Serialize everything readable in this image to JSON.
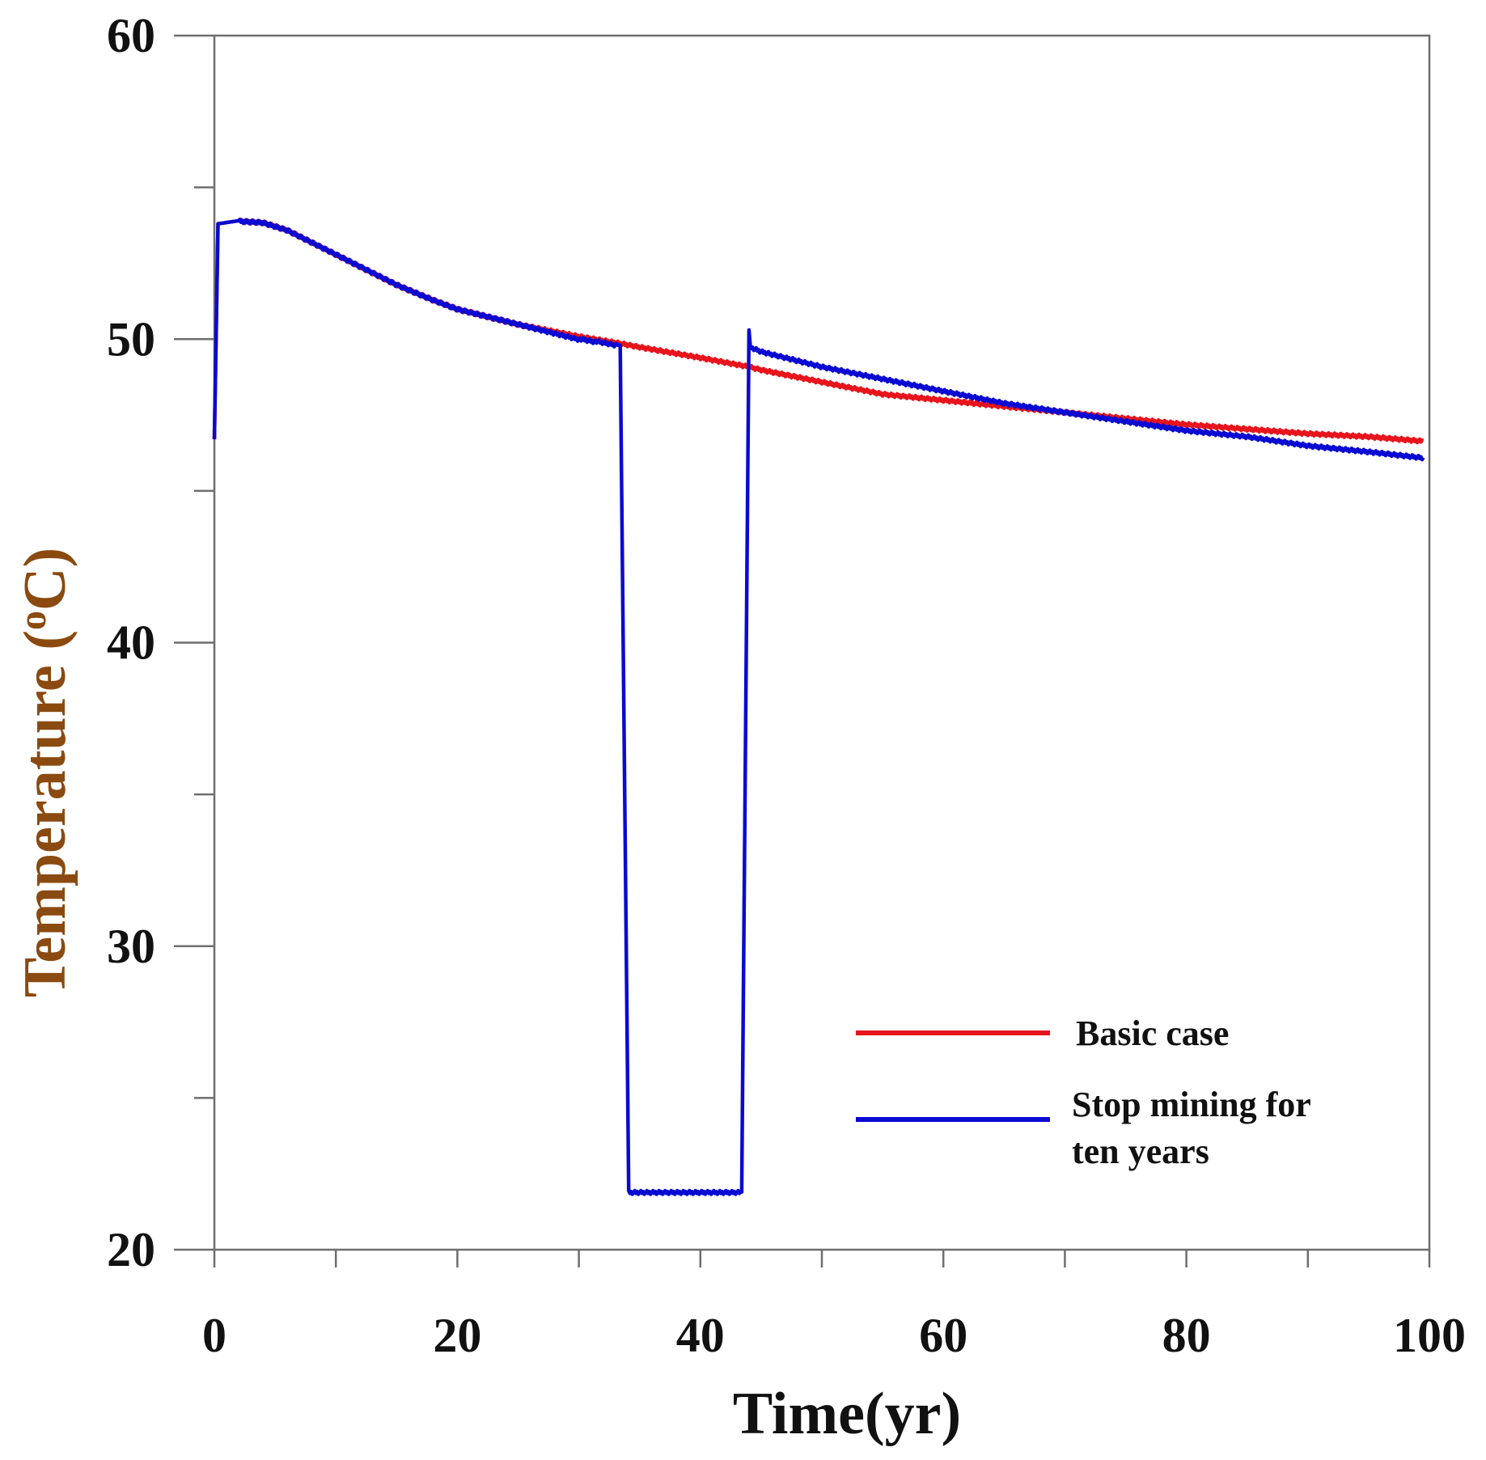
{
  "chart_data": {
    "type": "line",
    "title": "",
    "xlabel": "Time(yr)",
    "ylabel_main": "Temperature (",
    "ylabel_sup": "o",
    "ylabel_tail": "C)",
    "xlim": [
      0,
      100
    ],
    "ylim": [
      20,
      60
    ],
    "x_ticks": [
      0,
      20,
      40,
      60,
      80,
      100
    ],
    "x_tick_labels": [
      "0",
      "20",
      "40",
      "60",
      "80",
      "100"
    ],
    "x_minor_ticks": [
      10,
      30,
      50,
      70,
      90
    ],
    "y_ticks": [
      20,
      30,
      40,
      50,
      60
    ],
    "y_tick_labels": [
      "20",
      "30",
      "40",
      "50",
      "60"
    ],
    "y_minor_ticks": [
      25,
      35,
      45,
      55
    ],
    "grid": false,
    "legend_position": "bottom-right",
    "series": [
      {
        "name": "Basic case",
        "color": "#e8141c",
        "x": [
          0,
          0.3,
          2,
          4,
          6,
          8,
          10,
          12,
          15,
          18,
          20,
          25,
          30,
          33,
          35,
          40,
          44,
          45,
          50,
          55,
          60,
          65,
          70,
          75,
          80,
          85,
          90,
          95,
          99.5
        ],
        "y": [
          46.7,
          53.8,
          53.9,
          53.85,
          53.6,
          53.2,
          52.8,
          52.4,
          51.8,
          51.3,
          51.0,
          50.5,
          50.1,
          49.9,
          49.75,
          49.4,
          49.1,
          49.0,
          48.6,
          48.2,
          48.0,
          47.8,
          47.6,
          47.4,
          47.2,
          47.05,
          46.9,
          46.8,
          46.65
        ],
        "wiggle_amplitude": 0.15
      },
      {
        "name": "Stop mining for ten years",
        "label_line1": "Stop mining for",
        "label_line2": "ten years",
        "color": "#0a0ad2",
        "x": [
          0,
          0.3,
          2,
          4,
          6,
          8,
          10,
          12,
          15,
          18,
          20,
          25,
          30,
          33.2,
          33.4,
          34.1,
          43.4,
          44.0,
          44.1,
          45,
          50,
          55,
          60,
          65,
          70,
          75,
          80,
          85,
          90,
          95,
          99.5
        ],
        "y": [
          46.7,
          53.8,
          53.9,
          53.85,
          53.6,
          53.2,
          52.8,
          52.4,
          51.8,
          51.3,
          51.0,
          50.5,
          50.0,
          49.8,
          49.8,
          21.9,
          21.9,
          50.3,
          49.75,
          49.6,
          49.1,
          48.7,
          48.3,
          47.9,
          47.6,
          47.3,
          47.0,
          46.8,
          46.5,
          46.3,
          46.1
        ],
        "wiggle_amplitude": 0.15
      }
    ]
  },
  "colors": {
    "axis": "#6e6e6e",
    "tick_text": "#111111",
    "xlabel": "#111111",
    "ylabel": "#8a4a10"
  }
}
